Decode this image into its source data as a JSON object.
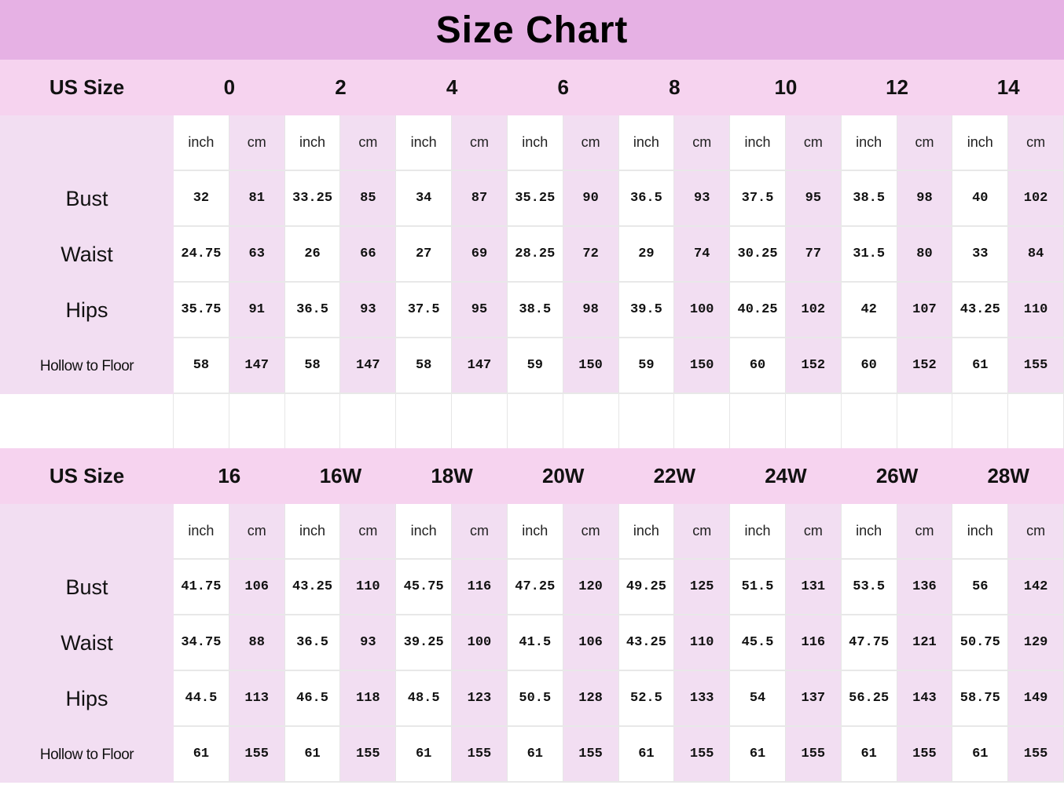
{
  "title": "Size Chart",
  "colors": {
    "title_bg": "#e6b1e4",
    "header_bg": "#f6d3ef",
    "label_bg": "#f2def2",
    "cm_bg": "#f2def2",
    "inch_bg": "#ffffff"
  },
  "tables": [
    {
      "header_label": "US Size",
      "sizes": [
        "0",
        "2",
        "4",
        "6",
        "8",
        "10",
        "12",
        "14"
      ],
      "units": [
        "inch",
        "cm",
        "inch",
        "cm",
        "inch",
        "cm",
        "inch",
        "cm",
        "inch",
        "cm",
        "inch",
        "cm",
        "inch",
        "cm",
        "inch",
        "cm"
      ],
      "rows": [
        {
          "label": "Bust",
          "values": [
            "32",
            "81",
            "33.25",
            "85",
            "34",
            "87",
            "35.25",
            "90",
            "36.5",
            "93",
            "37.5",
            "95",
            "38.5",
            "98",
            "40",
            "102"
          ]
        },
        {
          "label": "Waist",
          "values": [
            "24.75",
            "63",
            "26",
            "66",
            "27",
            "69",
            "28.25",
            "72",
            "29",
            "74",
            "30.25",
            "77",
            "31.5",
            "80",
            "33",
            "84"
          ]
        },
        {
          "label": "Hips",
          "values": [
            "35.75",
            "91",
            "36.5",
            "93",
            "37.5",
            "95",
            "38.5",
            "98",
            "39.5",
            "100",
            "40.25",
            "102",
            "42",
            "107",
            "43.25",
            "110"
          ]
        },
        {
          "label": "Hollow to Floor",
          "values": [
            "58",
            "147",
            "58",
            "147",
            "58",
            "147",
            "59",
            "150",
            "59",
            "150",
            "60",
            "152",
            "60",
            "152",
            "61",
            "155"
          ]
        }
      ]
    },
    {
      "header_label": "US Size",
      "sizes": [
        "16",
        "16W",
        "18W",
        "20W",
        "22W",
        "24W",
        "26W",
        "28W"
      ],
      "units": [
        "inch",
        "cm",
        "inch",
        "cm",
        "inch",
        "cm",
        "inch",
        "cm",
        "inch",
        "cm",
        "inch",
        "cm",
        "inch",
        "cm",
        "inch",
        "cm"
      ],
      "rows": [
        {
          "label": "Bust",
          "values": [
            "41.75",
            "106",
            "43.25",
            "110",
            "45.75",
            "116",
            "47.25",
            "120",
            "49.25",
            "125",
            "51.5",
            "131",
            "53.5",
            "136",
            "56",
            "142"
          ]
        },
        {
          "label": "Waist",
          "values": [
            "34.75",
            "88",
            "36.5",
            "93",
            "39.25",
            "100",
            "41.5",
            "106",
            "43.25",
            "110",
            "45.5",
            "116",
            "47.75",
            "121",
            "50.75",
            "129"
          ]
        },
        {
          "label": "Hips",
          "values": [
            "44.5",
            "113",
            "46.5",
            "118",
            "48.5",
            "123",
            "50.5",
            "128",
            "52.5",
            "133",
            "54",
            "137",
            "56.25",
            "143",
            "58.75",
            "149"
          ]
        },
        {
          "label": "Hollow to Floor",
          "values": [
            "61",
            "155",
            "61",
            "155",
            "61",
            "155",
            "61",
            "155",
            "61",
            "155",
            "61",
            "155",
            "61",
            "155",
            "61",
            "155"
          ]
        }
      ]
    }
  ]
}
